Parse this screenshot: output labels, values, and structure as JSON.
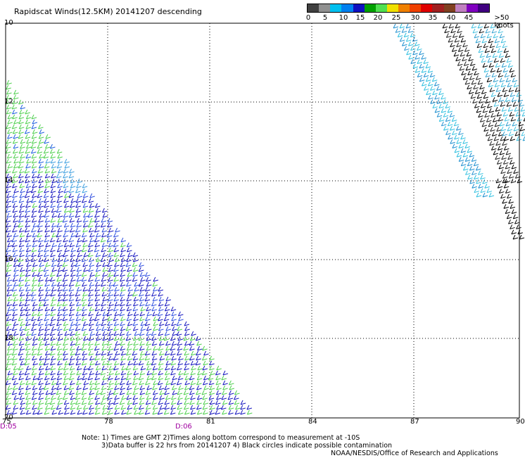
{
  "title": "Rapidscat Winds(12.5KM) 20141207 descending",
  "colorbar": {
    "colors": [
      "#404040",
      "#909090",
      "#00c0f0",
      "#0080f0",
      "#1010c0",
      "#00a000",
      "#50e050",
      "#f0e000",
      "#f08000",
      "#f04000",
      "#e00000",
      "#a02020",
      "#804020",
      "#c080c0",
      "#8000c0",
      "#400080"
    ],
    "labels": [
      "0",
      "5",
      "10",
      "15",
      "20",
      "25",
      "30",
      "35",
      "40",
      "45",
      ">50 knots"
    ]
  },
  "axes": {
    "x_ticks": [
      "75",
      "78",
      "81",
      "84",
      "87",
      "90"
    ],
    "y_ticks": [
      "10",
      "12",
      "14",
      "16",
      "18",
      "20"
    ],
    "times": [
      "D:05",
      "D:06"
    ]
  },
  "notes": {
    "line1": "Note: 1) Times are GMT 2)Times along bottom correspond to measurement at -10S",
    "line2": "3)Data buffer is 22 hrs from 20141207 4) Black circles indicate possible contamination",
    "line3": "NOAA/NESDIS/Office of Research and Applications"
  }
}
